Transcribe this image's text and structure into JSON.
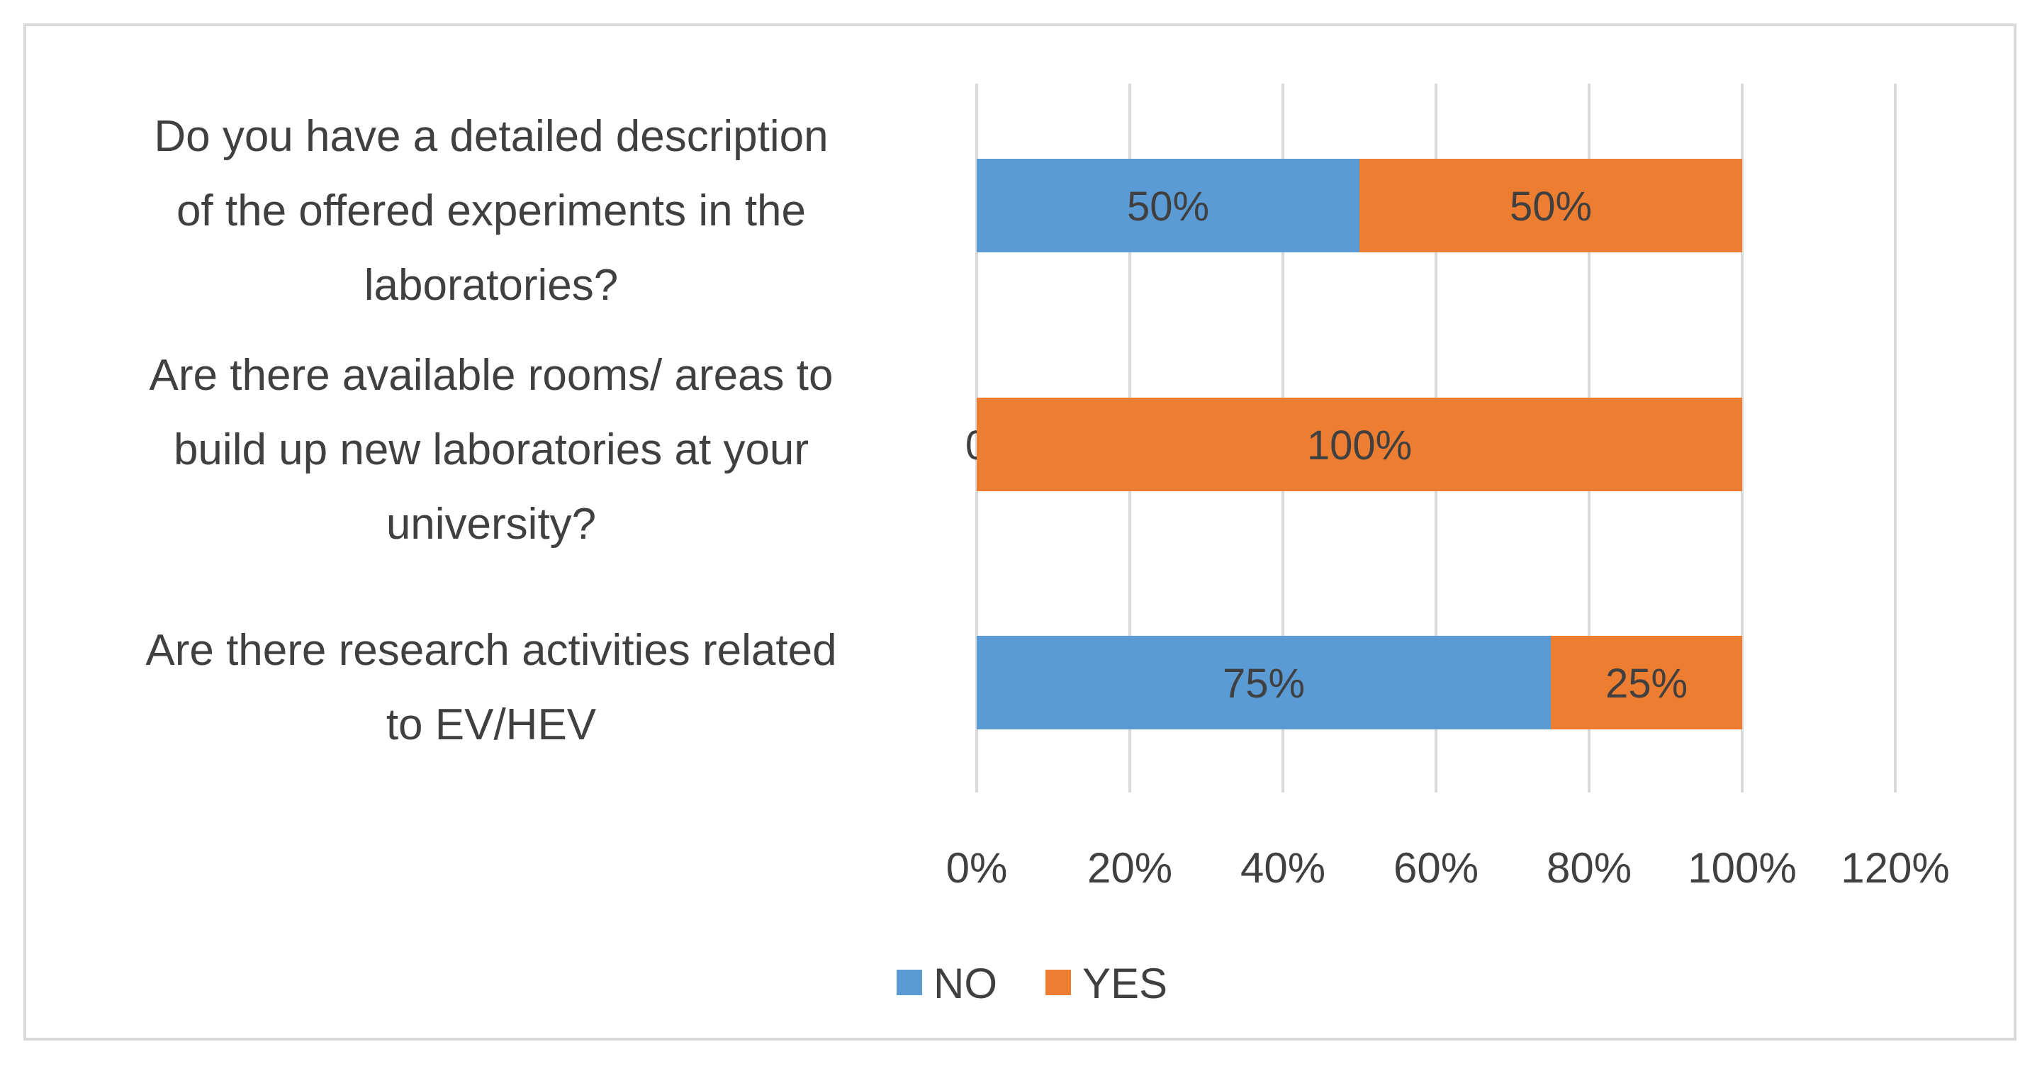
{
  "chart_data": {
    "type": "bar",
    "orientation": "horizontal",
    "stacked": true,
    "categories": [
      "Do you have a detailed description of the offered experiments in the laboratories?",
      "Are there available rooms/ areas to build up new laboratories at your university?",
      "Are there research activities related to EV/HEV"
    ],
    "category_lines": [
      [
        "Do you have a detailed description",
        "of the offered experiments in the",
        "laboratories?"
      ],
      [
        "Are there available rooms/ areas to",
        "build up new laboratories at your",
        "university?"
      ],
      [
        "Are there research activities related",
        "to EV/HEV"
      ]
    ],
    "series": [
      {
        "name": "NO",
        "values": [
          50,
          0,
          75
        ],
        "labels": [
          "50%",
          "0",
          "75%"
        ],
        "color": "#5b9bd5"
      },
      {
        "name": "YES",
        "values": [
          50,
          100,
          25
        ],
        "labels": [
          "50%",
          "100%",
          "25%"
        ],
        "color": "#ed7d31"
      }
    ],
    "xlim": [
      0,
      120
    ],
    "x_ticks": [
      0,
      20,
      40,
      60,
      80,
      100,
      120
    ],
    "x_tick_labels": [
      "0%",
      "20%",
      "40%",
      "60%",
      "80%",
      "100%",
      "120%"
    ],
    "grid": true,
    "legend": "bottom",
    "title": "",
    "xlabel": "",
    "ylabel": ""
  }
}
